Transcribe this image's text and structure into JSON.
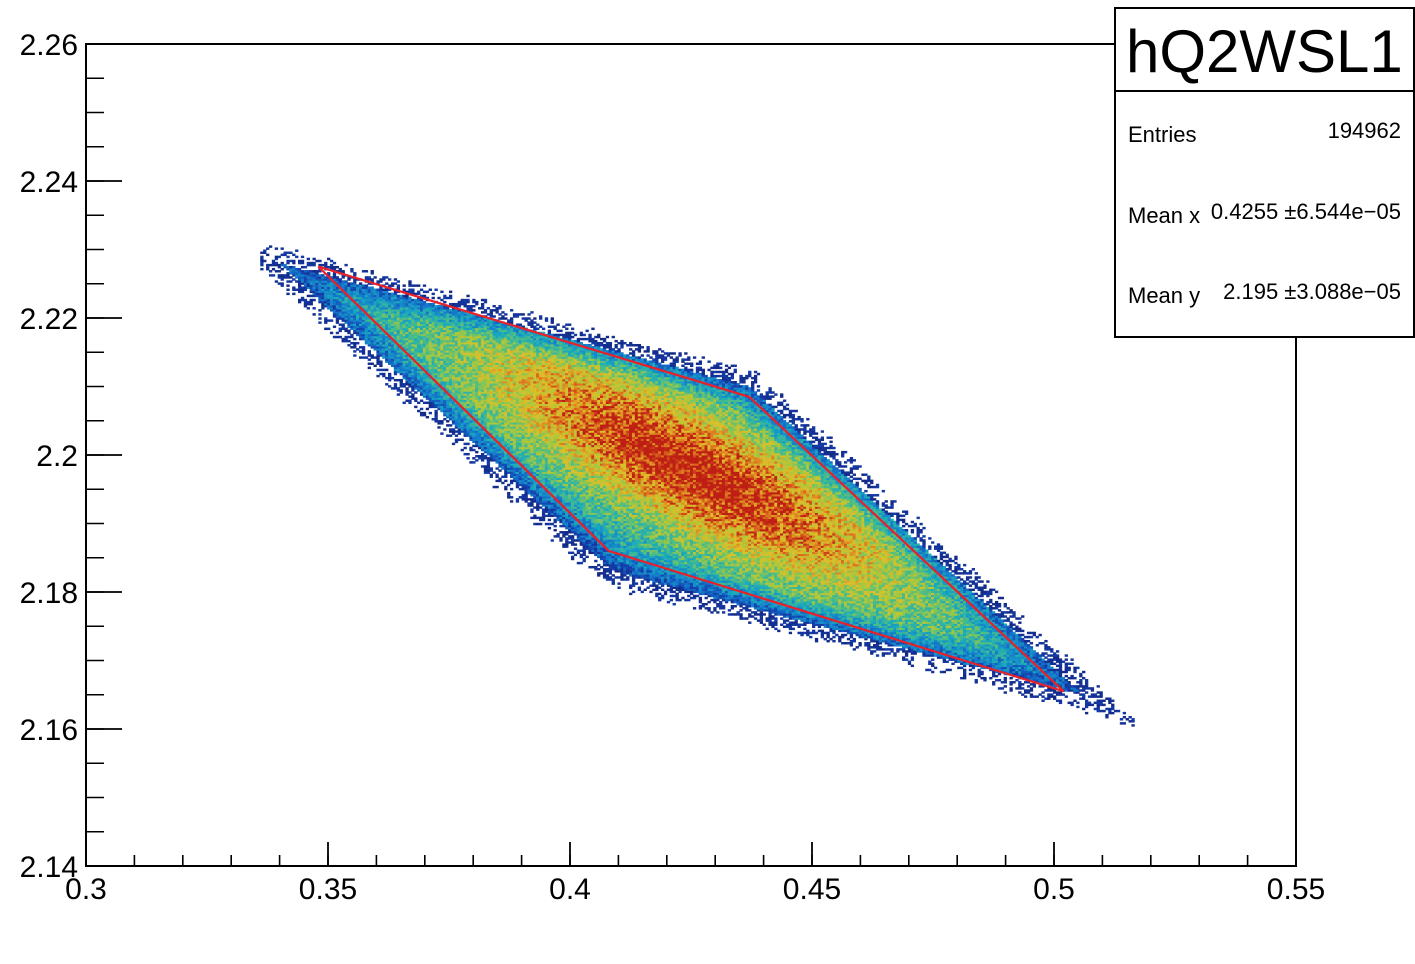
{
  "chart_data": {
    "type": "heatmap",
    "title": "",
    "xlabel": "",
    "ylabel": "",
    "xlim": [
      0.3,
      0.55
    ],
    "ylim": [
      2.14,
      2.26
    ],
    "x_ticks": [
      {
        "value": 0.3,
        "label": "0.3"
      },
      {
        "value": 0.35,
        "label": "0.35"
      },
      {
        "value": 0.4,
        "label": "0.4"
      },
      {
        "value": 0.45,
        "label": "0.45"
      },
      {
        "value": 0.5,
        "label": "0.5"
      },
      {
        "value": 0.55,
        "label": "0.55"
      }
    ],
    "y_ticks": [
      {
        "value": 2.14,
        "label": "2.14"
      },
      {
        "value": 2.16,
        "label": "2.16"
      },
      {
        "value": 2.18,
        "label": "2.18"
      },
      {
        "value": 2.2,
        "label": "2.2"
      },
      {
        "value": 2.22,
        "label": "2.22"
      },
      {
        "value": 2.24,
        "label": "2.24"
      },
      {
        "value": 2.26,
        "label": "2.26"
      }
    ],
    "x_minor_step": 0.01,
    "y_minor_step": 0.005,
    "grid": false,
    "colormap": "kBird (dark blue → cyan → green → yellow → orange → red)",
    "distribution_region": {
      "outline": [
        [
          0.34,
          2.228
        ],
        [
          0.437,
          2.21
        ],
        [
          0.513,
          2.161
        ],
        [
          0.409,
          2.183
        ]
      ],
      "peak_center": [
        0.425,
        2.198
      ]
    },
    "cut_polygon": {
      "color": "#e8202a",
      "points": [
        [
          0.348,
          2.2275
        ],
        [
          0.437,
          2.2085
        ],
        [
          0.502,
          2.1655
        ],
        [
          0.408,
          2.186
        ],
        [
          0.348,
          2.2275
        ]
      ]
    },
    "stats_box": {
      "name": "hQ2WSL1",
      "rows": [
        {
          "label": "Entries",
          "value": "194962"
        },
        {
          "label": "Mean x",
          "value": "0.4255 ±6.544e−05"
        },
        {
          "label": "Mean y",
          "value": "2.195 ±3.088e−05"
        }
      ]
    }
  }
}
